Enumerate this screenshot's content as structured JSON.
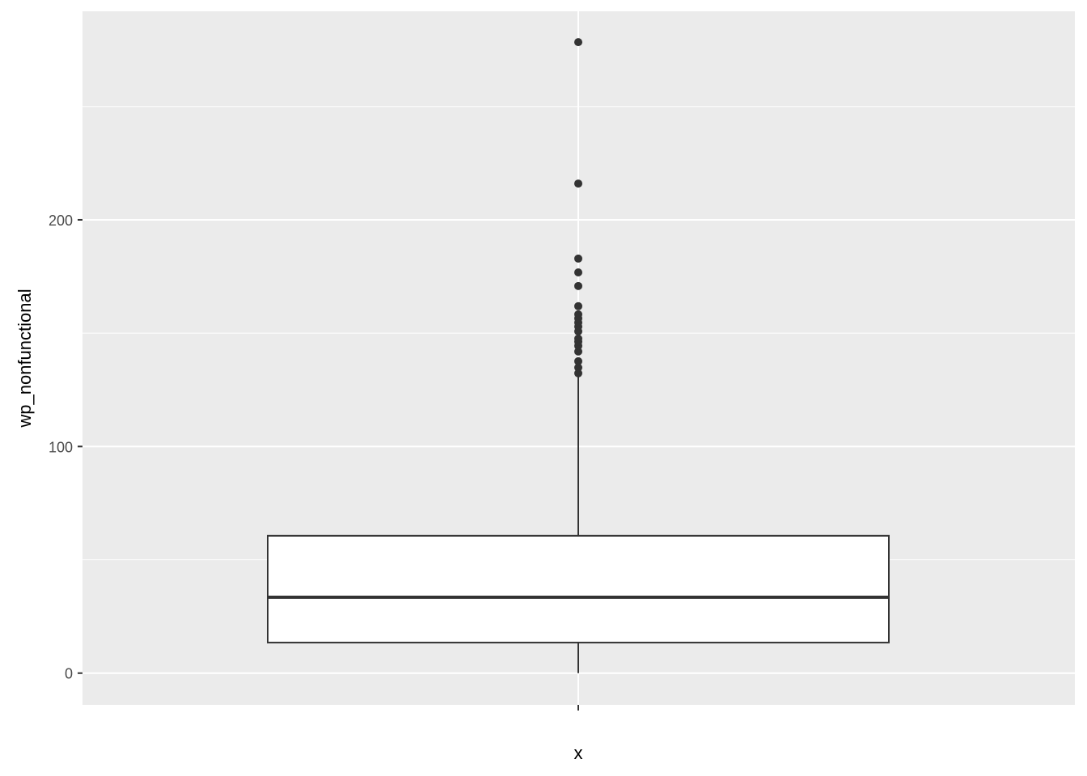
{
  "chart_data": {
    "type": "boxplot",
    "title": "",
    "xlabel": "x",
    "ylabel": "wp_nonfunctional",
    "ylim": [
      -14,
      292
    ],
    "yticks": [
      0,
      100,
      200
    ],
    "ytick_labels": [
      "0",
      "100",
      "200"
    ],
    "grid": true,
    "box": {
      "whisker_low": 0,
      "q1": 13.5,
      "median": 33.5,
      "q3": 60.6,
      "whisker_high": 131,
      "outliers": [
        132.3,
        134.8,
        137.6,
        141.9,
        144.4,
        146.2,
        147.6,
        150.8,
        152.9,
        154.7,
        156.5,
        158.3,
        161.9,
        170.8,
        176.8,
        182.9,
        216,
        278.4
      ]
    },
    "colors": {
      "panel": "#EBEBEB",
      "grid": "#FFFFFF",
      "box_line": "#333333",
      "box_fill": "#FFFFFF",
      "text": "#4D4D4D"
    }
  }
}
